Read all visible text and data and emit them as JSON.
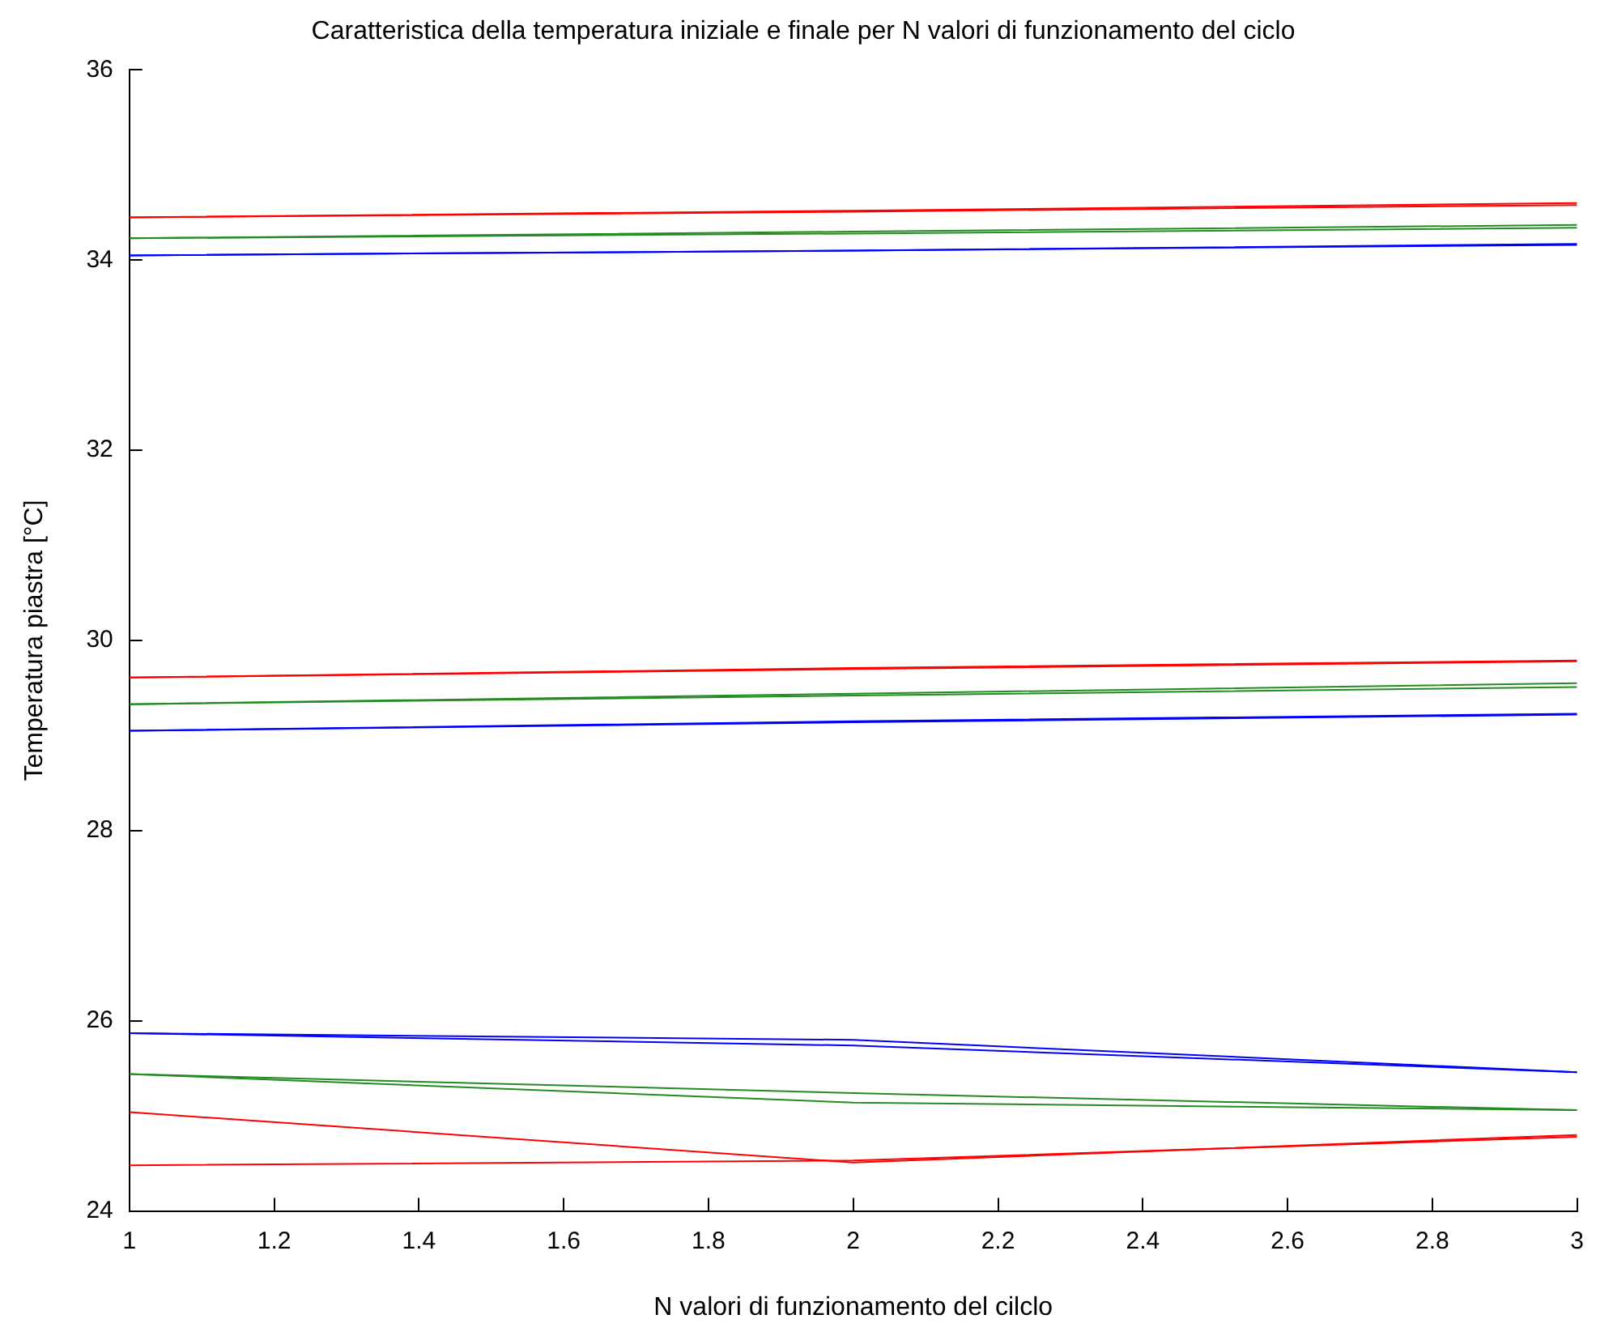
{
  "chart_data": {
    "type": "line",
    "title": "Caratteristica della temperatura iniziale e finale per N valori di funzionamento del ciclo",
    "xlabel": "N valori di funzionamento del cilclo",
    "ylabel": "Temperatura piastra [°C]",
    "x": [
      1,
      2,
      3
    ],
    "series": [
      {
        "color": "#ff0000",
        "values": [
          34.45,
          34.52,
          34.6
        ]
      },
      {
        "color": "#ff0000",
        "values": [
          34.45,
          34.51,
          34.58
        ]
      },
      {
        "color": "#228b22",
        "values": [
          34.23,
          34.3,
          34.37
        ]
      },
      {
        "color": "#228b22",
        "values": [
          34.23,
          34.28,
          34.34
        ]
      },
      {
        "color": "#0000ff",
        "values": [
          34.05,
          34.1,
          34.17
        ]
      },
      {
        "color": "#0000ff",
        "values": [
          34.05,
          34.1,
          34.16
        ]
      },
      {
        "color": "#ff0000",
        "values": [
          29.61,
          29.71,
          29.79
        ]
      },
      {
        "color": "#ff0000",
        "values": [
          29.61,
          29.7,
          29.78
        ]
      },
      {
        "color": "#228b22",
        "values": [
          29.33,
          29.44,
          29.55
        ]
      },
      {
        "color": "#228b22",
        "values": [
          29.33,
          29.42,
          29.51
        ]
      },
      {
        "color": "#0000ff",
        "values": [
          29.05,
          29.15,
          29.23
        ]
      },
      {
        "color": "#0000ff",
        "values": [
          29.05,
          29.14,
          29.22
        ]
      },
      {
        "color": "#0000ff",
        "values": [
          25.87,
          25.8,
          25.46
        ]
      },
      {
        "color": "#0000ff",
        "values": [
          25.87,
          25.74,
          25.46
        ]
      },
      {
        "color": "#228b22",
        "values": [
          25.44,
          25.24,
          25.06
        ]
      },
      {
        "color": "#228b22",
        "values": [
          25.44,
          25.14,
          25.06
        ]
      },
      {
        "color": "#ff0000",
        "values": [
          25.04,
          24.51,
          24.8
        ]
      },
      {
        "color": "#ff0000",
        "values": [
          24.48,
          24.53,
          24.78
        ]
      }
    ],
    "xlim": [
      1,
      3
    ],
    "xticks": [
      1,
      1.2,
      1.4,
      1.6,
      1.8,
      2,
      2.2,
      2.4,
      2.6,
      2.8,
      3
    ],
    "ylim": [
      24,
      36
    ],
    "yticks": [
      24,
      26,
      28,
      30,
      32,
      34,
      36
    ],
    "grid": false,
    "legend": false,
    "marker": "none",
    "line_style": "solid"
  }
}
